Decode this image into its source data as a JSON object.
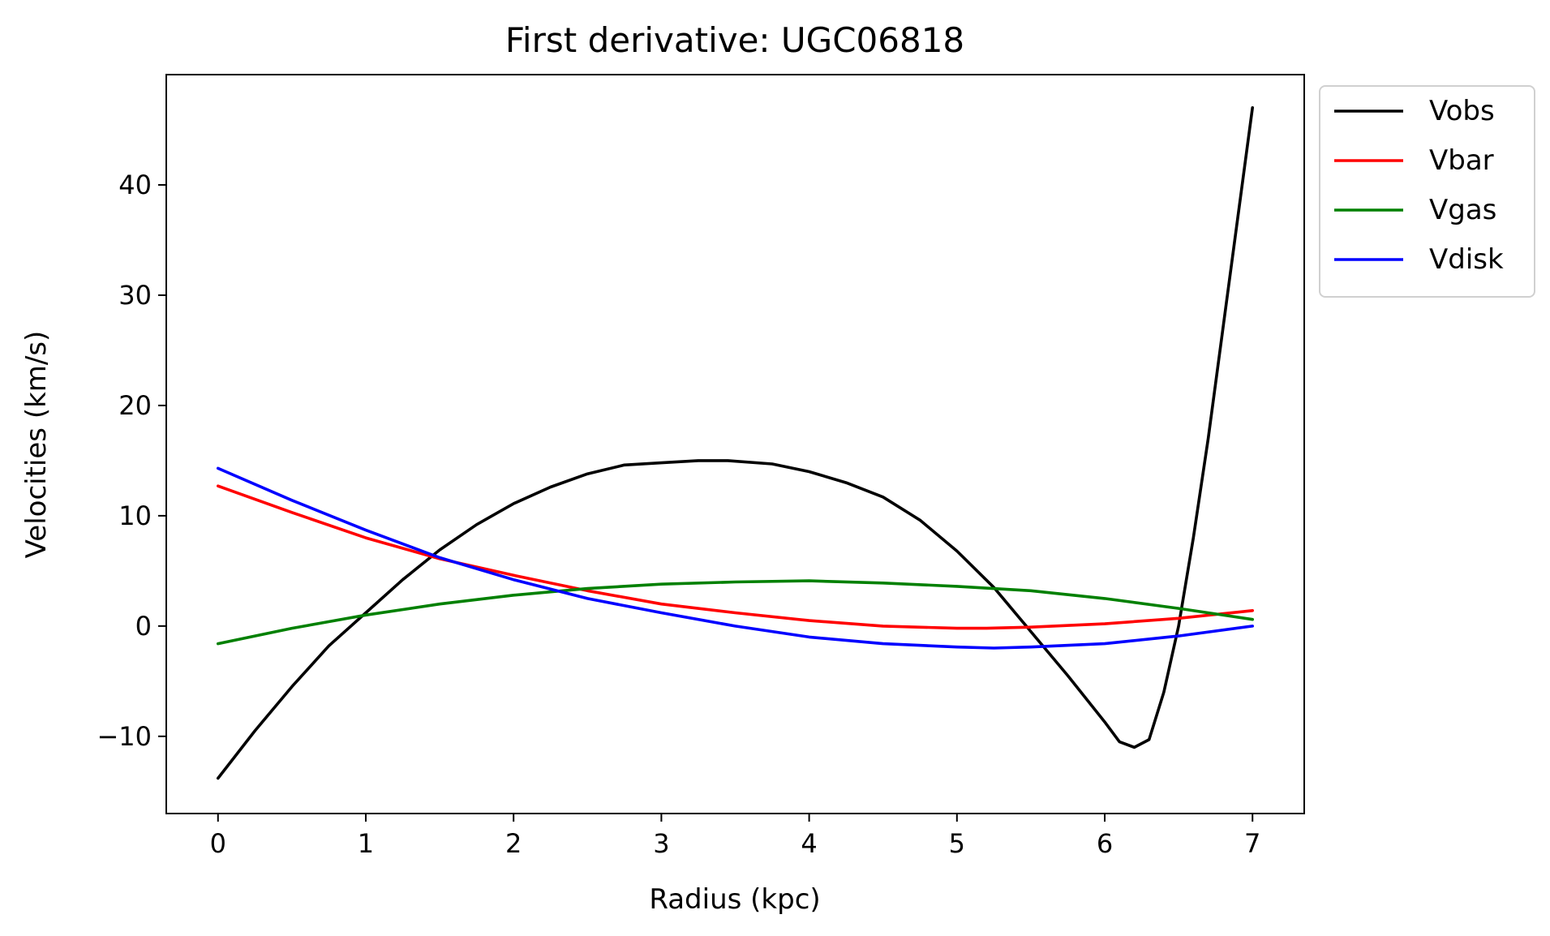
{
  "chart_data": {
    "type": "line",
    "title": "First derivative: UGC06818",
    "xlabel": "Radius (kpc)",
    "ylabel": "Velocities (km/s)",
    "xlim": [
      -0.35,
      7.35
    ],
    "ylim": [
      -17,
      50
    ],
    "xticks": [
      0,
      1,
      2,
      3,
      4,
      5,
      6,
      7
    ],
    "yticks": [
      -10,
      0,
      10,
      20,
      30,
      40
    ],
    "ytick_labels": [
      "−10",
      "0",
      "10",
      "20",
      "30",
      "40"
    ],
    "grid": false,
    "legend_position": "outside-top-right",
    "series": [
      {
        "name": "Vobs",
        "color": "#000000",
        "x": [
          0,
          0.25,
          0.5,
          0.75,
          1,
          1.25,
          1.5,
          1.75,
          2,
          2.25,
          2.5,
          2.75,
          3,
          3.25,
          3.45,
          3.75,
          4,
          4.25,
          4.5,
          4.75,
          5,
          5.25,
          5.5,
          5.75,
          6,
          6.1,
          6.2,
          6.3,
          6.4,
          6.5,
          6.6,
          6.7,
          6.8,
          6.9,
          7.0
        ],
        "y": [
          -13.8,
          -9.5,
          -5.5,
          -1.8,
          1.2,
          4.2,
          6.9,
          9.2,
          11.1,
          12.6,
          13.8,
          14.6,
          14.8,
          15.0,
          15.0,
          14.7,
          14.0,
          13.0,
          11.7,
          9.6,
          6.8,
          3.5,
          -0.5,
          -4.5,
          -8.7,
          -10.5,
          -11.0,
          -10.3,
          -6.0,
          0.0,
          8.0,
          17.0,
          27.0,
          37.0,
          47.0
        ]
      },
      {
        "name": "Vbar",
        "color": "#ff0000",
        "x": [
          0,
          0.5,
          1,
          1.5,
          2,
          2.5,
          3,
          3.5,
          4,
          4.5,
          5,
          5.2,
          5.5,
          6,
          6.5,
          7.0
        ],
        "y": [
          12.7,
          10.3,
          8.0,
          6.1,
          4.6,
          3.2,
          2.0,
          1.2,
          0.5,
          0.0,
          -0.2,
          -0.2,
          -0.1,
          0.2,
          0.7,
          1.4
        ]
      },
      {
        "name": "Vgas",
        "color": "#008000",
        "x": [
          0,
          0.5,
          1,
          1.5,
          2,
          2.5,
          3,
          3.5,
          4,
          4.5,
          5,
          5.5,
          6,
          6.5,
          7.0
        ],
        "y": [
          -1.6,
          -0.2,
          1.0,
          2.0,
          2.8,
          3.4,
          3.8,
          4.0,
          4.1,
          3.9,
          3.6,
          3.2,
          2.5,
          1.6,
          0.6
        ]
      },
      {
        "name": "Vdisk",
        "color": "#0000ff",
        "x": [
          0,
          0.5,
          1,
          1.5,
          2,
          2.5,
          3,
          3.5,
          4,
          4.5,
          5,
          5.25,
          5.5,
          6,
          6.5,
          7.0
        ],
        "y": [
          14.3,
          11.4,
          8.7,
          6.2,
          4.2,
          2.5,
          1.2,
          0.0,
          -1.0,
          -1.6,
          -1.9,
          -2.0,
          -1.9,
          -1.6,
          -0.9,
          0.0
        ]
      }
    ]
  }
}
